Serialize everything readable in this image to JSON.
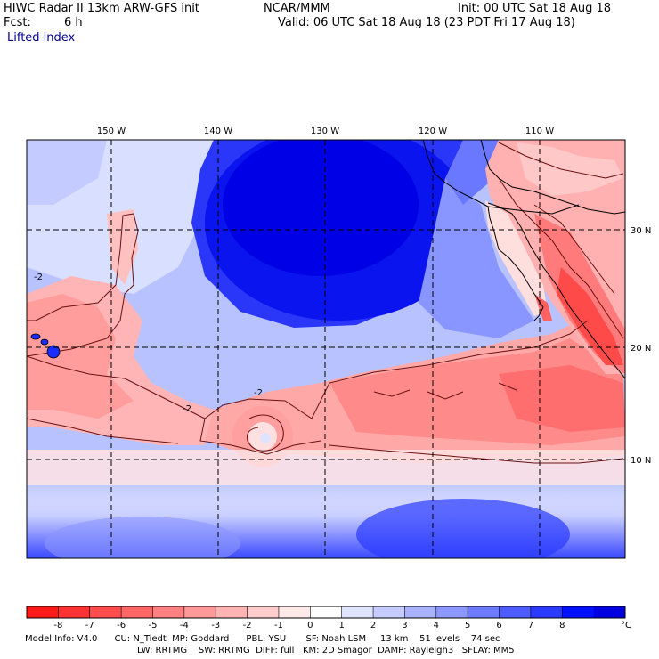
{
  "header": {
    "title": "HIWC Radar II 13km ARW-GFS init",
    "org": "NCAR/MMM",
    "init": "Init: 00 UTC Sat 18 Aug 18",
    "fcst_label": "Fcst:",
    "fcst_value": "6 h",
    "valid": "Valid: 06 UTC Sat 18 Aug 18 (23 PDT Fri 17 Aug 18)",
    "field": "Lifted index"
  },
  "map": {
    "lon_labels": [
      "150 W",
      "140 W",
      "130 W",
      "120 W",
      "110 W"
    ],
    "lat_labels": [
      "30 N",
      "20 N",
      "10 N"
    ],
    "contour_labels": [
      "-2",
      "-2",
      "-2"
    ]
  },
  "colorbar": {
    "ticks": [
      "-8",
      "-7",
      "-6",
      "-5",
      "-4",
      "-3",
      "-2",
      "-1",
      "0",
      "1",
      "2",
      "3",
      "4",
      "5",
      "6",
      "7",
      "8"
    ],
    "unit": "°C",
    "colors": [
      "#ff1a1a",
      "#ff3333",
      "#ff4d4d",
      "#ff6666",
      "#ff8080",
      "#ff9999",
      "#ffb3b3",
      "#ffcccc",
      "#ffe8e8",
      "#ffffff",
      "#e0e4ff",
      "#c6ccff",
      "#a8b2ff",
      "#8c97ff",
      "#6d7bff",
      "#4d5cff",
      "#2a3aff",
      "#0011ff",
      "#0000e0"
    ]
  },
  "footer": {
    "line1": "Model Info: V4.0      CU: N_Tiedt  MP: Goddard      PBL: YSU       SF: Noah LSM     13 km    51 levels    74 sec",
    "line2": "LW: RRTMG    SW: RRTMG  DIFF: full   KM: 2D Smagor  DAMP: Rayleigh3   SFLAY: MM5"
  }
}
